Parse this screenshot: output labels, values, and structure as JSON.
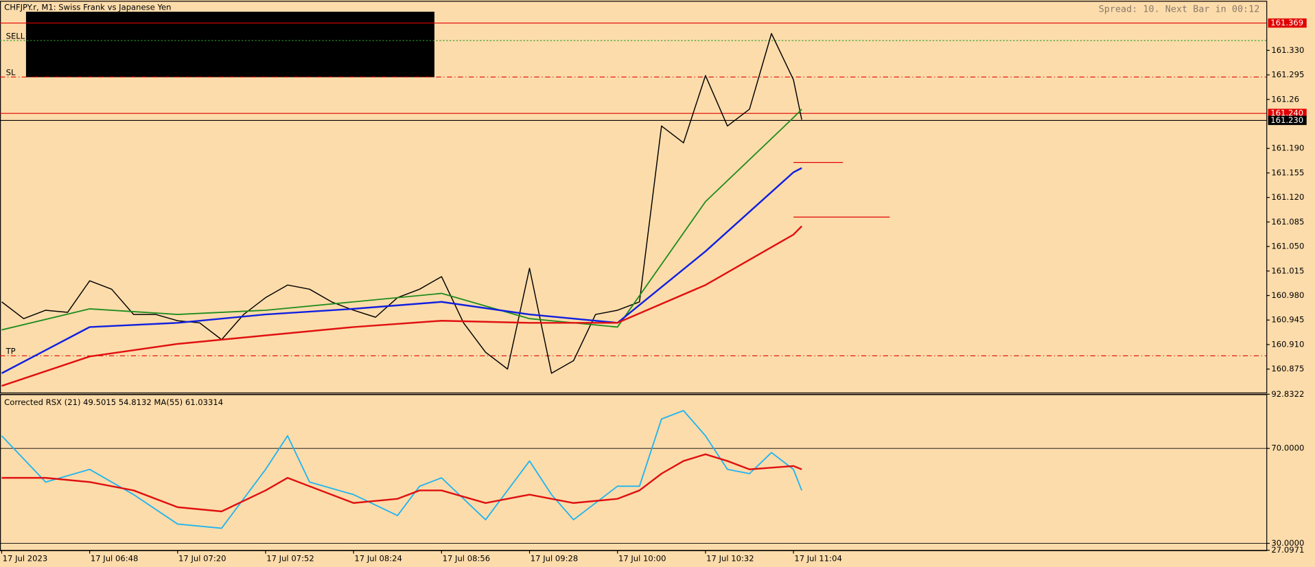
{
  "header": {
    "symbol": "CHFJPY.r, M1:  Swiss Frank vs Japanese Yen",
    "status": "Spread: 10. Next Bar in 00:12"
  },
  "chart_data": [
    {
      "type": "line",
      "xlim": [
        -0.6,
        460
      ],
      "ylim": [
        160.8415,
        161.3995
      ],
      "xticks": [
        {
          "value": 0,
          "label": "17 Jul 2023"
        },
        {
          "value": 32,
          "label": "17 Jul 06:48"
        },
        {
          "value": 64,
          "label": "17 Jul 07:20"
        },
        {
          "value": 96,
          "label": "17 Jul 07:52"
        },
        {
          "value": 128,
          "label": "17 Jul 08:24"
        },
        {
          "value": 160,
          "label": "17 Jul 08:56"
        },
        {
          "value": 192,
          "label": "17 Jul 09:28"
        },
        {
          "value": 224,
          "label": "17 Jul 10:00"
        },
        {
          "value": 256,
          "label": "17 Jul 10:32"
        },
        {
          "value": 288,
          "label": "17 Jul 11:04"
        }
      ],
      "yticks": [
        {
          "value": 161.33,
          "label": "161.330"
        },
        161.295,
        161.26,
        {
          "value": 161.19,
          "label": "161.190"
        },
        161.155,
        {
          "value": 161.12,
          "label": "161.120"
        },
        161.085,
        {
          "value": 161.05,
          "label": "161.050"
        },
        161.015,
        {
          "value": 160.98,
          "label": "160.980"
        },
        160.945,
        {
          "value": 160.91,
          "label": "160.910"
        },
        160.875
      ],
      "series": [
        {
          "color": "#000000",
          "width": 1.2,
          "x": [
            0,
            8,
            16,
            24,
            32,
            40,
            48,
            56,
            64,
            72,
            80,
            88,
            96,
            104,
            112,
            120,
            128,
            136,
            144,
            152,
            160,
            168,
            176,
            184,
            192,
            200,
            208,
            216,
            224,
            232,
            240,
            248,
            256,
            264,
            272,
            280,
            288,
            291
          ],
          "values": [
            160.971,
            160.947,
            160.959,
            160.956,
            161.001,
            160.989,
            160.953,
            160.953,
            160.944,
            160.941,
            160.917,
            160.953,
            160.977,
            160.995,
            160.989,
            160.971,
            160.959,
            160.949,
            160.977,
            160.989,
            161.007,
            160.941,
            160.899,
            160.875,
            161.019,
            160.869,
            160.887,
            160.953,
            160.959,
            160.971,
            161.222,
            161.198,
            161.294,
            161.222,
            161.246,
            161.354,
            161.288,
            161.231
          ]
        },
        {
          "color": "#1e8c1e",
          "width": 1.5,
          "x": [
            0,
            32,
            64,
            96,
            128,
            160,
            192,
            224,
            256,
            288,
            291
          ],
          "values": [
            160.931,
            160.961,
            160.953,
            160.959,
            160.971,
            160.983,
            160.947,
            160.935,
            161.114,
            161.234,
            161.246
          ]
        },
        {
          "color": "#1020e0",
          "width": 2,
          "x": [
            0,
            32,
            64,
            96,
            128,
            160,
            192,
            224,
            256,
            288,
            291
          ],
          "values": [
            160.869,
            160.935,
            160.941,
            160.953,
            160.961,
            160.971,
            160.953,
            160.941,
            161.043,
            161.156,
            161.162
          ]
        },
        {
          "color": "#e01010",
          "width": 2,
          "x": [
            0,
            32,
            64,
            96,
            128,
            160,
            192,
            224,
            256,
            288,
            291
          ],
          "values": [
            160.851,
            160.893,
            160.911,
            160.923,
            160.935,
            160.944,
            160.941,
            160.941,
            160.995,
            161.067,
            161.079
          ]
        }
      ],
      "levels": [
        {
          "value": 161.369,
          "color": "#e00000",
          "style": "solid",
          "tag": true
        },
        {
          "value": 161.344,
          "color": "#2a9a2a",
          "style": "dotted",
          "name": "SELL"
        },
        {
          "value": 161.292,
          "color": "#e00000",
          "style": "dashdot",
          "name": "SL"
        },
        {
          "value": 161.24,
          "label": "161.240",
          "color": "#e00000",
          "style": "solid",
          "tag": true
        },
        {
          "value": 161.23,
          "label": "161.230",
          "color": "#000000",
          "style": "solid",
          "tag": true
        },
        {
          "value": 160.894,
          "color": "#e00000",
          "style": "dashdot",
          "name": "TP"
        }
      ],
      "segments": [
        {
          "value": 161.17,
          "x": [
            288,
            306
          ],
          "color": "#e00000"
        },
        {
          "value": 161.092,
          "x": [
            288,
            323
          ],
          "color": "#e00000"
        }
      ]
    },
    {
      "type": "line",
      "title": "Corrected RSX (21) 49.5015 54.8132 MA(55) 61.03314",
      "xlim": [
        -0.6,
        460
      ],
      "ylim": [
        27.0971,
        92.8322
      ],
      "yticks": [
        92.8322,
        {
          "value": 70,
          "label": "70.0000"
        },
        {
          "value": 30,
          "label": "30.0000"
        },
        27.0971
      ],
      "grid": true,
      "x": [
        0,
        16,
        32,
        48,
        64,
        80,
        96,
        104,
        112,
        128,
        144,
        152,
        160,
        176,
        192,
        200,
        208,
        224,
        232,
        240,
        248,
        256,
        264,
        272,
        280,
        288,
        291
      ],
      "series": [
        {
          "color": "#1eb4f0",
          "width": 1.5,
          "values": [
            75.31,
            55.84,
            61.15,
            50.53,
            38.14,
            36.37,
            61.15,
            75.31,
            55.84,
            50.53,
            41.68,
            54.07,
            57.61,
            39.91,
            64.69,
            50.53,
            39.91,
            54.07,
            54.07,
            82.39,
            85.93,
            75.31,
            61.15,
            59.38,
            68.23,
            61.15,
            52.3
          ]
        },
        {
          "color": "#e01010",
          "width": 2,
          "values": [
            57.61,
            57.61,
            55.84,
            52.3,
            45.22,
            43.45,
            52.3,
            57.61,
            54.07,
            47.0,
            48.76,
            52.3,
            52.3,
            47.0,
            50.53,
            48.76,
            47.0,
            48.76,
            52.3,
            59.38,
            64.69,
            67.52,
            64.69,
            61.15,
            61.86,
            62.57,
            61.15
          ]
        }
      ]
    }
  ]
}
